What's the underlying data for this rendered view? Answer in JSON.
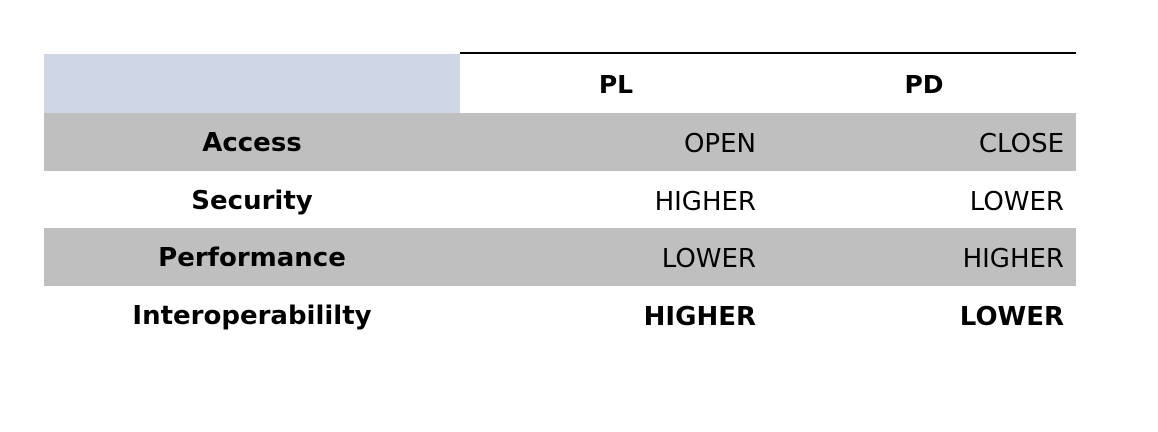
{
  "table": {
    "columns": [
      "PL",
      "PD"
    ],
    "rows": [
      {
        "label": "Access",
        "pl": "OPEN",
        "pd": "CLOSE"
      },
      {
        "label": "Security",
        "pl": "HIGHER",
        "pd": "LOWER"
      },
      {
        "label": "Performance",
        "pl": "LOWER",
        "pd": "HIGHER"
      },
      {
        "label": "Interoperabililty",
        "pl": "HIGHER",
        "pd": "LOWER"
      }
    ]
  }
}
